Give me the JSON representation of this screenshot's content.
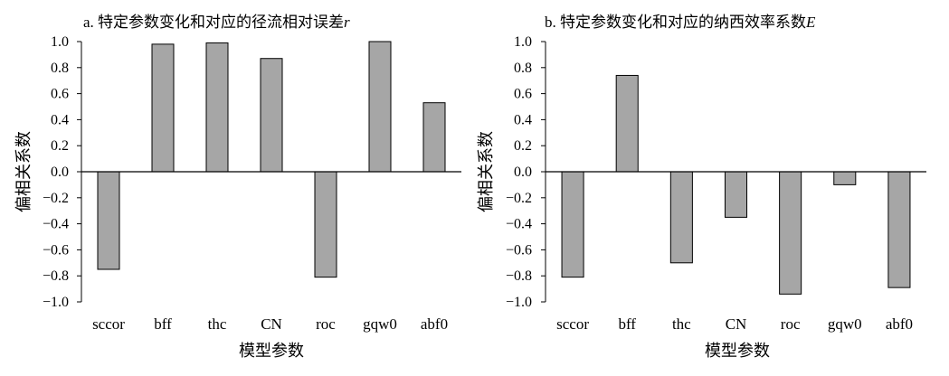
{
  "chart_data": [
    {
      "type": "bar",
      "title_prefix": "a. 特定参数变化和对应的径流相对误差",
      "title_var": "r",
      "xlabel": "模型参数",
      "ylabel": "偏相关系数",
      "categories": [
        "sccor",
        "bff",
        "thc",
        "CN",
        "roc",
        "gqw0",
        "abf0"
      ],
      "values": [
        -0.75,
        0.98,
        0.99,
        0.87,
        -0.81,
        1.0,
        0.53
      ],
      "ylim": [
        -1.0,
        1.0
      ],
      "yticks": [
        "1.0",
        "0.8",
        "0.6",
        "0.4",
        "0.2",
        "0.0",
        "−0.2",
        "−0.4",
        "−0.6",
        "−0.8",
        "−1.0"
      ],
      "bar_color": "#a6a6a6",
      "grid": false
    },
    {
      "type": "bar",
      "title_prefix": "b. 特定参数变化和对应的纳西效率系数",
      "title_var": "E",
      "xlabel": "模型参数",
      "ylabel": "偏相关系数",
      "categories": [
        "sccor",
        "bff",
        "thc",
        "CN",
        "roc",
        "gqw0",
        "abf0"
      ],
      "values": [
        -0.81,
        0.74,
        -0.7,
        -0.35,
        -0.94,
        -0.1,
        -0.89
      ],
      "ylim": [
        -1.0,
        1.0
      ],
      "yticks": [
        "1.0",
        "0.8",
        "0.6",
        "0.4",
        "0.2",
        "0.0",
        "−0.2",
        "−0.4",
        "−0.6",
        "−0.8",
        "−1.0"
      ],
      "bar_color": "#a6a6a6",
      "grid": false
    }
  ]
}
